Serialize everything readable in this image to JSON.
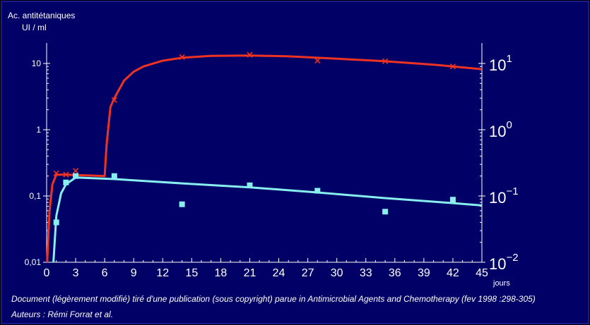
{
  "chart_data": {
    "type": "line",
    "ylabel_line1": "Ac. antitétaniques",
    "ylabel_line2": "UI / ml",
    "xlabel": "jours",
    "x_ticks": [
      "0",
      "3",
      "6",
      "9",
      "12",
      "15",
      "18",
      "21",
      "24",
      "27",
      "30",
      "33",
      "36",
      "39",
      "42",
      "45"
    ],
    "xlim": [
      0,
      45
    ],
    "y_scale": "log",
    "ylim": [
      0.01,
      20
    ],
    "y_ticks_left": [
      "10",
      "1",
      "0,1",
      "0,01"
    ],
    "y_ticks_left_values": [
      10,
      1,
      0.1,
      0.01
    ],
    "y_ticks_right": [
      {
        "base": "10",
        "exp": "1",
        "value": 10
      },
      {
        "base": "10",
        "exp": "0",
        "value": 1
      },
      {
        "base": "10",
        "exp": "−1",
        "value": 0.1
      },
      {
        "base": "10",
        "exp": "−2",
        "value": 0.01
      }
    ],
    "grid": false,
    "series": [
      {
        "color": "#ee3322",
        "marker": "x",
        "points": [
          [
            1,
            0.22
          ],
          [
            2,
            0.21
          ],
          [
            3,
            0.24
          ],
          [
            7,
            2.8
          ],
          [
            14,
            12.5
          ],
          [
            21,
            13.5
          ],
          [
            28,
            11.0
          ],
          [
            35,
            10.8
          ],
          [
            42,
            9.0
          ]
        ],
        "curve": [
          [
            0.05,
            0.01
          ],
          [
            0.3,
            0.06
          ],
          [
            0.6,
            0.15
          ],
          [
            1,
            0.21
          ],
          [
            2,
            0.21
          ],
          [
            4,
            0.205
          ],
          [
            6,
            0.2
          ],
          [
            6.2,
            0.6
          ],
          [
            6.6,
            2.2
          ],
          [
            7,
            3.0
          ],
          [
            8,
            5.5
          ],
          [
            9,
            7.5
          ],
          [
            10,
            9.0
          ],
          [
            12,
            11.0
          ],
          [
            14,
            12.2
          ],
          [
            17,
            13.0
          ],
          [
            21,
            13.2
          ],
          [
            25,
            12.8
          ],
          [
            30,
            11.8
          ],
          [
            35,
            10.8
          ],
          [
            40,
            9.6
          ],
          [
            45,
            8.2
          ]
        ]
      },
      {
        "color": "#88eeee",
        "marker": "square",
        "points": [
          [
            1,
            0.04
          ],
          [
            2,
            0.16
          ],
          [
            3,
            0.2
          ],
          [
            7,
            0.2
          ],
          [
            14,
            0.075
          ],
          [
            21,
            0.145
          ],
          [
            28,
            0.12
          ],
          [
            35,
            0.058
          ],
          [
            42,
            0.088
          ]
        ],
        "curve": [
          [
            0.7,
            0.01
          ],
          [
            1,
            0.05
          ],
          [
            1.5,
            0.11
          ],
          [
            2,
            0.15
          ],
          [
            3,
            0.19
          ],
          [
            5,
            0.185
          ],
          [
            7,
            0.18
          ],
          [
            14,
            0.155
          ],
          [
            21,
            0.135
          ],
          [
            28,
            0.113
          ],
          [
            35,
            0.093
          ],
          [
            42,
            0.078
          ],
          [
            45,
            0.072
          ]
        ]
      }
    ]
  },
  "caption": {
    "source": "Document (légèrement modifié) tiré d'une publication (sous copyright) parue in Antimicrobial Agents and Chemotherapy (fev 1998 :298-305)",
    "authors": "Auteurs : Rémi Forrat et al."
  }
}
